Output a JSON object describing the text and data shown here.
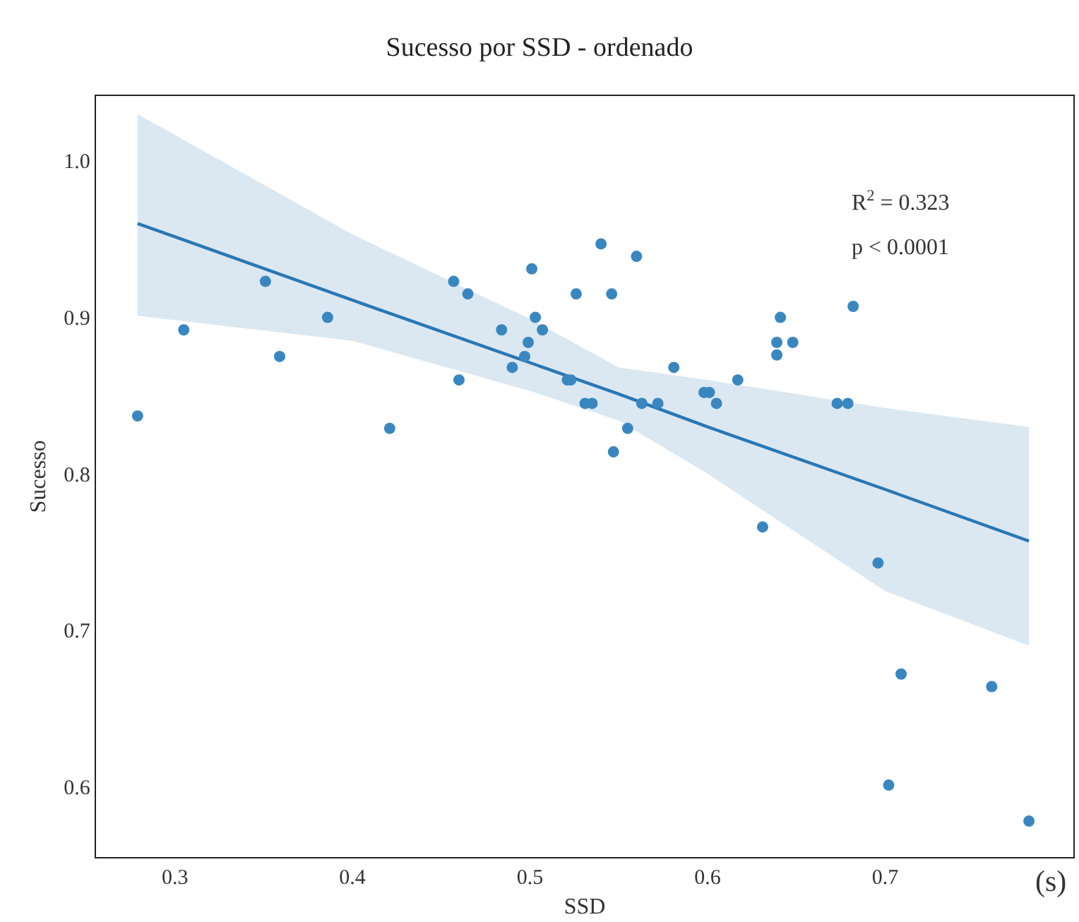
{
  "chart_data": {
    "type": "scatter",
    "title": "Sucesso por SSD - ordenado",
    "xlabel": "SSD",
    "ylabel": "Sucesso",
    "annotations": [
      "R$^{2}$ = 0.323",
      "p < 0.0001",
      "(s)"
    ],
    "series": [
      {
        "color": "#3a87c0",
        "marker": "circle",
        "x": [
          0.279,
          0.305,
          0.351,
          0.359,
          0.386,
          0.421,
          0.457,
          0.46,
          0.465,
          0.484,
          0.49,
          0.497,
          0.499,
          0.501,
          0.503,
          0.507,
          0.521,
          0.523,
          0.526,
          0.531,
          0.535,
          0.54,
          0.546,
          0.547,
          0.555,
          0.56,
          0.563,
          0.572,
          0.581,
          0.598,
          0.601,
          0.605,
          0.617,
          0.631,
          0.639,
          0.639,
          0.641,
          0.648,
          0.673,
          0.679,
          0.682,
          0.696,
          0.702,
          0.709,
          0.76,
          0.781
        ],
        "values": [
          0.837,
          0.892,
          0.923,
          0.875,
          0.9,
          0.829,
          0.923,
          0.86,
          0.915,
          0.892,
          0.868,
          0.875,
          0.884,
          0.931,
          0.9,
          0.892,
          0.86,
          0.86,
          0.915,
          0.845,
          0.845,
          0.947,
          0.915,
          0.814,
          0.829,
          0.939,
          0.845,
          0.845,
          0.868,
          0.852,
          0.852,
          0.845,
          0.86,
          0.766,
          0.884,
          0.876,
          0.9,
          0.884,
          0.845,
          0.845,
          0.907,
          0.743,
          0.601,
          0.672,
          0.664,
          0.578
        ]
      },
      {
        "type": "line",
        "color": "#2a77b4",
        "line_style": "solid",
        "x": [
          0.279,
          0.4,
          0.5,
          0.55,
          0.6,
          0.7,
          0.781
        ],
        "values": [
          0.96,
          0.911,
          0.871,
          0.851,
          0.83,
          0.79,
          0.757
        ],
        "lower": [
          0.901,
          0.885,
          0.853,
          0.834,
          0.8,
          0.725,
          0.69
        ],
        "upper": [
          1.03,
          0.953,
          0.899,
          0.868,
          0.86,
          0.842,
          0.83
        ]
      }
    ],
    "xlim": [
      0.2556,
      0.806
    ],
    "ylim": [
      0.555,
      1.0415
    ],
    "xticks": [
      0.3,
      0.4,
      0.5,
      0.6,
      0.7
    ],
    "yticks": [
      0.6,
      0.7,
      0.8,
      0.9,
      {
        "value": 1.0,
        "label": "1.0"
      }
    ]
  }
}
